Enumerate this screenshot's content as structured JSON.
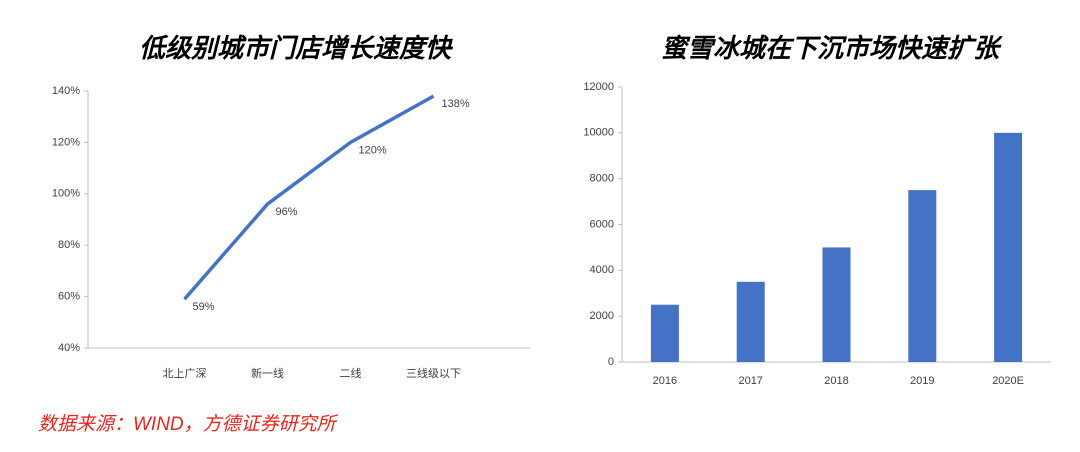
{
  "chart_data": [
    {
      "type": "line",
      "title": "低级别城市门店增长速度快",
      "categories": [
        "北上广深",
        "新一线",
        "二线",
        "三线级以下"
      ],
      "values": [
        59,
        96,
        120,
        138
      ],
      "value_labels": [
        "59%",
        "96%",
        "120%",
        "138%"
      ],
      "color": "#4472c4",
      "ylim": [
        40,
        140
      ],
      "yticks": [
        {
          "value": 40,
          "label": "40%"
        },
        {
          "value": 60,
          "label": "60%"
        },
        {
          "value": 80,
          "label": "80%"
        },
        {
          "value": 100,
          "label": "100%"
        },
        {
          "value": 120,
          "label": "120%"
        },
        {
          "value": 140,
          "label": "140%"
        }
      ],
      "grid": false
    },
    {
      "type": "bar",
      "title": "蜜雪冰城在下沉市场快速扩张",
      "categories": [
        "2016",
        "2017",
        "2018",
        "2019",
        "2020E"
      ],
      "values": [
        2500,
        3500,
        5000,
        7500,
        10000
      ],
      "color": "#4472c4",
      "ylim": [
        0,
        12000
      ],
      "yticks": [
        0,
        2000,
        4000,
        6000,
        8000,
        10000,
        12000
      ],
      "grid": false
    }
  ],
  "source": "数据来源：WIND，方德证券研究所"
}
